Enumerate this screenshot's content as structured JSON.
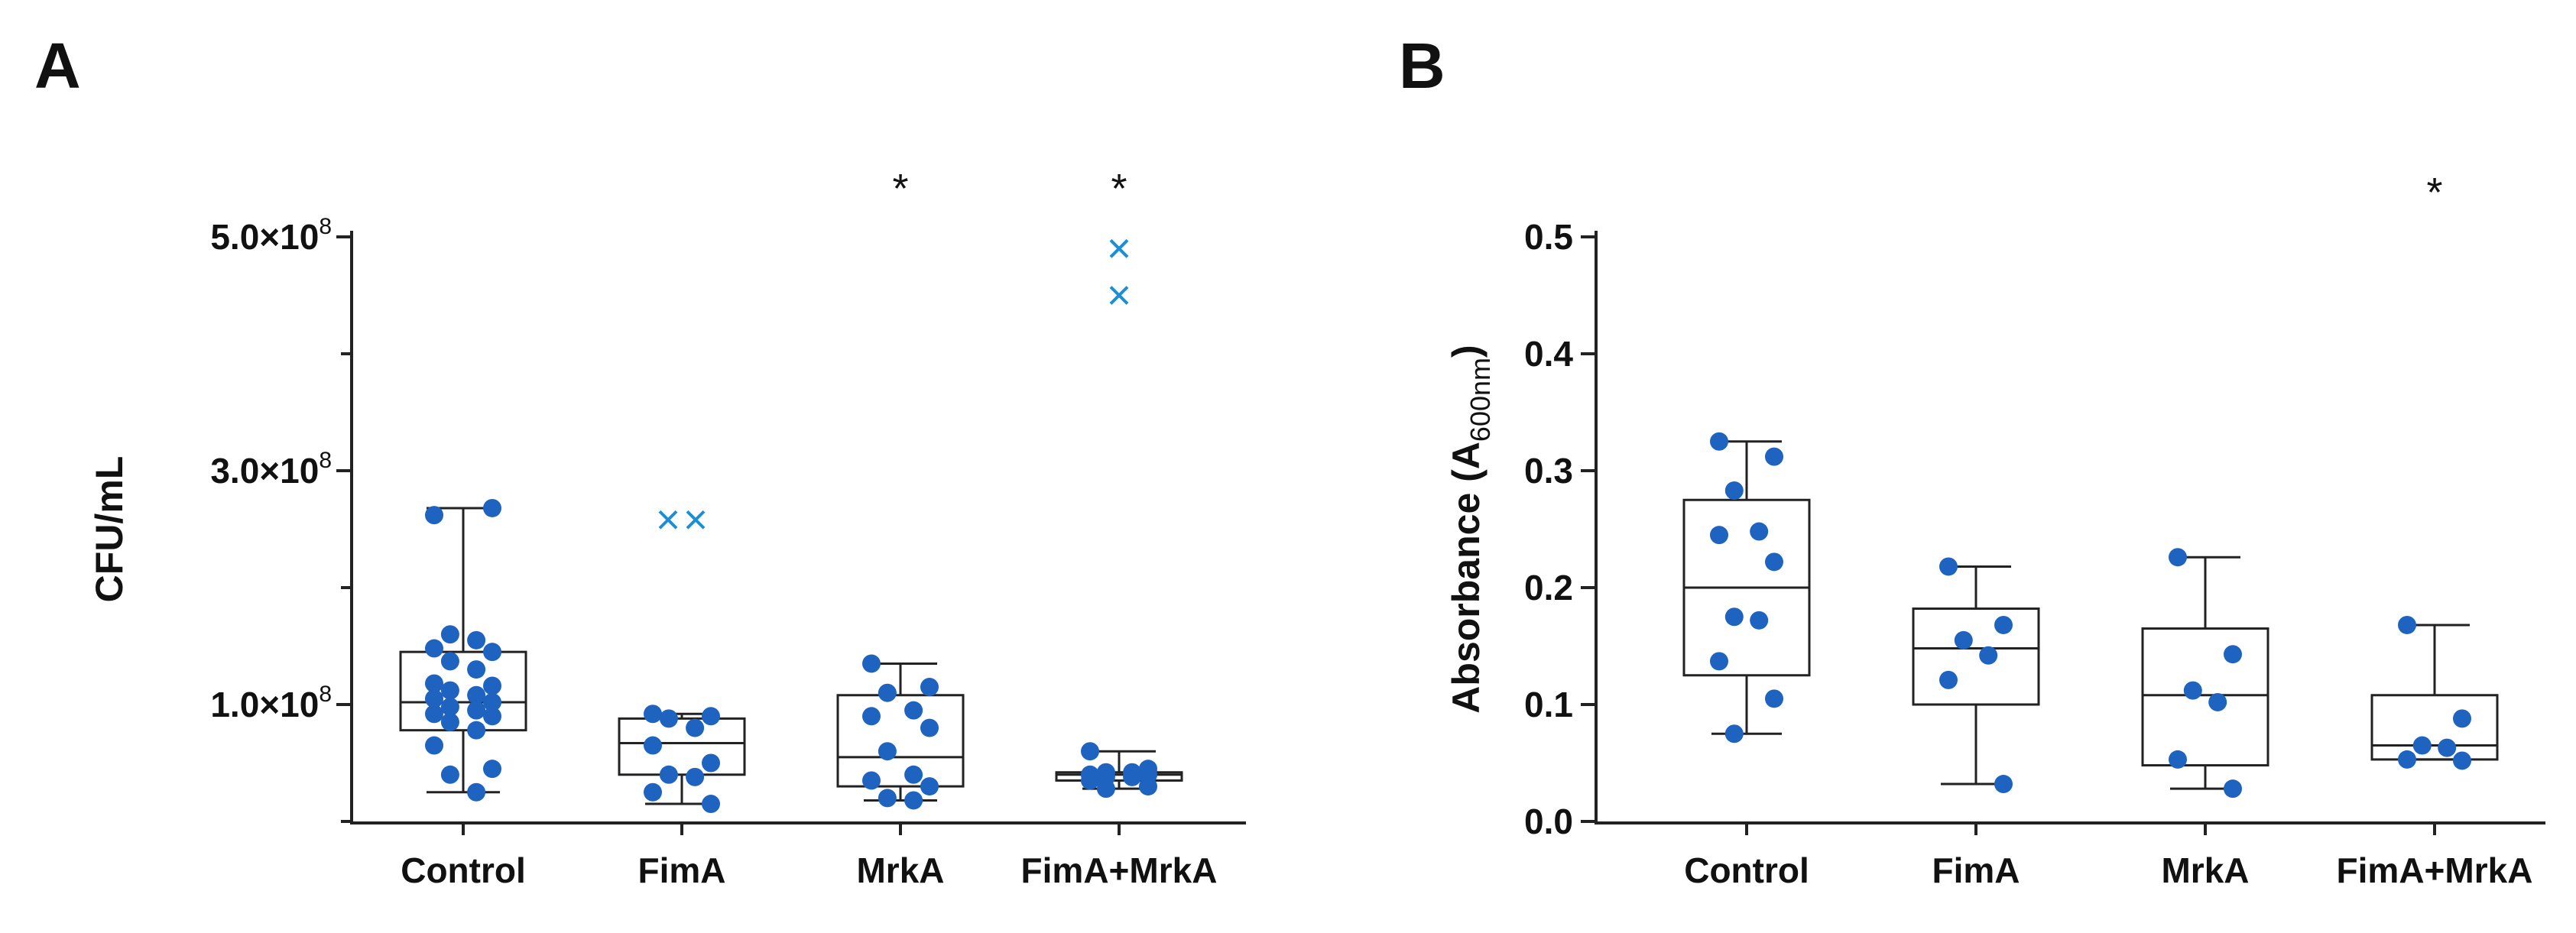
{
  "colors": {
    "dot": "#1f63c0",
    "outlier": "#1a8fd6",
    "axis": "#222222",
    "box": "#222222"
  },
  "chart_data": [
    {
      "panel": "A",
      "type": "box",
      "ylabel": "CFU/mL",
      "ylim": [
        0,
        500000000
      ],
      "yticks_labeled": [
        {
          "value": 100000000,
          "mant": "1.0",
          "exp": "8"
        },
        {
          "value": 300000000,
          "mant": "3.0",
          "exp": "8"
        },
        {
          "value": 500000000,
          "mant": "5.0",
          "exp": "8"
        }
      ],
      "yticks_minor": [
        0,
        200000000,
        400000000
      ],
      "categories": [
        "Control",
        "FimA",
        "MrkA",
        "FimA+MrkA"
      ],
      "significance": [
        "",
        "",
        "*",
        "*"
      ],
      "groups": [
        {
          "name": "Control",
          "whisker_low": 25000000,
          "q1": 78000000,
          "median": 102000000,
          "q3": 145000000,
          "whisker_high": 268000000,
          "points": [
            262000000,
            268000000,
            160000000,
            155000000,
            148000000,
            145000000,
            137000000,
            130000000,
            118000000,
            116000000,
            112000000,
            108000000,
            105000000,
            102000000,
            98000000,
            95000000,
            92000000,
            90000000,
            85000000,
            78000000,
            65000000,
            45000000,
            40000000,
            25000000
          ]
        },
        {
          "name": "FimA",
          "whisker_low": 15000000,
          "q1": 40000000,
          "median": 67000000,
          "q3": 88000000,
          "whisker_high": 92000000,
          "points": [
            92000000,
            90000000,
            88000000,
            80000000,
            65000000,
            50000000,
            40000000,
            38000000,
            25000000,
            15000000
          ],
          "outliers": [
            258000000,
            258000000
          ]
        },
        {
          "name": "MrkA",
          "whisker_low": 18000000,
          "q1": 30000000,
          "median": 55000000,
          "q3": 108000000,
          "whisker_high": 135000000,
          "points": [
            135000000,
            115000000,
            110000000,
            95000000,
            90000000,
            80000000,
            60000000,
            40000000,
            35000000,
            30000000,
            20000000,
            18000000
          ]
        },
        {
          "name": "FimA+MrkA",
          "whisker_low": 28000000,
          "q1": 35000000,
          "median": 40000000,
          "q3": 42000000,
          "whisker_high": 60000000,
          "points": [
            60000000,
            45000000,
            42000000,
            42000000,
            40000000,
            40000000,
            38000000,
            38000000,
            35000000,
            30000000,
            28000000
          ],
          "outliers": [
            490000000,
            450000000
          ]
        }
      ]
    },
    {
      "panel": "B",
      "type": "box",
      "ylabel_main": "Absorbance (A",
      "ylabel_sub": "600nm",
      "ylabel_close": ")",
      "ylim": [
        0,
        0.5
      ],
      "yticks": [
        "0.0",
        "0.1",
        "0.2",
        "0.3",
        "0.4",
        "0.5"
      ],
      "categories": [
        "Control",
        "FimA",
        "MrkA",
        "FimA+MrkA"
      ],
      "significance": [
        "",
        "",
        "",
        "*"
      ],
      "groups": [
        {
          "name": "Control",
          "whisker_low": 0.075,
          "q1": 0.125,
          "median": 0.2,
          "q3": 0.275,
          "whisker_high": 0.325,
          "points": [
            0.325,
            0.312,
            0.283,
            0.248,
            0.245,
            0.222,
            0.175,
            0.172,
            0.137,
            0.105,
            0.075
          ]
        },
        {
          "name": "FimA",
          "whisker_low": 0.032,
          "q1": 0.1,
          "median": 0.148,
          "q3": 0.182,
          "whisker_high": 0.218,
          "points": [
            0.218,
            0.168,
            0.155,
            0.142,
            0.121,
            0.032
          ]
        },
        {
          "name": "MrkA",
          "whisker_low": 0.028,
          "q1": 0.048,
          "median": 0.108,
          "q3": 0.165,
          "whisker_high": 0.226,
          "points": [
            0.226,
            0.143,
            0.112,
            0.102,
            0.053,
            0.028
          ]
        },
        {
          "name": "FimA+MrkA",
          "whisker_low": 0.053,
          "q1": 0.053,
          "median": 0.065,
          "q3": 0.108,
          "whisker_high": 0.168,
          "points": [
            0.168,
            0.088,
            0.065,
            0.063,
            0.053,
            0.052
          ]
        }
      ]
    }
  ]
}
